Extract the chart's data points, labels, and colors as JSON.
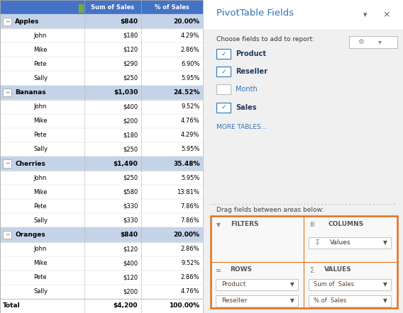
{
  "pivot_header_bg": "#4472C4",
  "pivot_header_text": "#FFFFFF",
  "pivot_header_cols": [
    "Sum of Sales",
    "% of Sales"
  ],
  "group_bg": "#C5D3E8",
  "groups": [
    {
      "name": "Apples",
      "sum": "$840",
      "pct": "20.00%",
      "rows": [
        {
          "name": "John",
          "sum": "$180",
          "pct": "4.29%"
        },
        {
          "name": "Mike",
          "sum": "$120",
          "pct": "2.86%"
        },
        {
          "name": "Pete",
          "sum": "$290",
          "pct": "6.90%"
        },
        {
          "name": "Sally",
          "sum": "$250",
          "pct": "5.95%"
        }
      ]
    },
    {
      "name": "Bananas",
      "sum": "$1,030",
      "pct": "24.52%",
      "rows": [
        {
          "name": "John",
          "sum": "$400",
          "pct": "9.52%"
        },
        {
          "name": "Mike",
          "sum": "$200",
          "pct": "4.76%"
        },
        {
          "name": "Pete",
          "sum": "$180",
          "pct": "4.29%"
        },
        {
          "name": "Sally",
          "sum": "$250",
          "pct": "5.95%"
        }
      ]
    },
    {
      "name": "Cherries",
      "sum": "$1,490",
      "pct": "35.48%",
      "rows": [
        {
          "name": "John",
          "sum": "$250",
          "pct": "5.95%"
        },
        {
          "name": "Mike",
          "sum": "$580",
          "pct": "13.81%"
        },
        {
          "name": "Pete",
          "sum": "$330",
          "pct": "7.86%"
        },
        {
          "name": "Sally",
          "sum": "$330",
          "pct": "7.86%"
        }
      ]
    },
    {
      "name": "Oranges",
      "sum": "$840",
      "pct": "20.00%",
      "rows": [
        {
          "name": "John",
          "sum": "$120",
          "pct": "2.86%"
        },
        {
          "name": "Mike",
          "sum": "$400",
          "pct": "9.52%"
        },
        {
          "name": "Pete",
          "sum": "$120",
          "pct": "2.86%"
        },
        {
          "name": "Sally",
          "sum": "$200",
          "pct": "4.76%"
        }
      ]
    }
  ],
  "total_label": "Total",
  "total_sum": "$4,200",
  "total_pct": "100.00%",
  "panel_title": "PivotTable Fields",
  "panel_title_color": "#2E75B6",
  "choose_text": "Choose fields to add to report:",
  "fields": [
    {
      "name": "Product",
      "checked": true
    },
    {
      "name": "Reseller",
      "checked": true
    },
    {
      "name": "Month",
      "checked": false
    },
    {
      "name": "Sales",
      "checked": true
    }
  ],
  "more_tables": "MORE TABLES...",
  "drag_text": "Drag fields between areas below:",
  "orange_border": "#E07020",
  "filters_label": "FILTERS",
  "columns_label": "COLUMNS",
  "rows_label": "ROWS",
  "values_label": "VALUES",
  "columns_value": "Values",
  "rows_values": [
    "Product",
    "Reseller"
  ],
  "values_values": [
    "Sum of  Sales",
    "% of  Sales"
  ],
  "check_color": "#2E75B6",
  "field_text_checked_color": "#1F3864",
  "field_text_unchecked_color": "#2E75B6"
}
